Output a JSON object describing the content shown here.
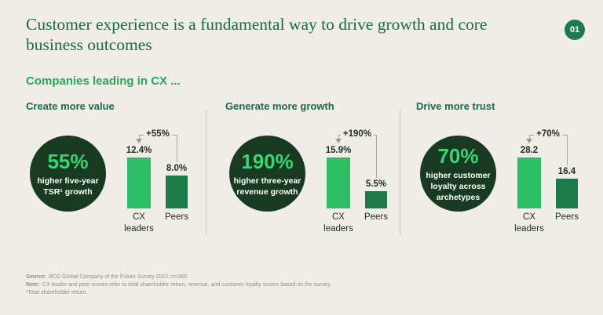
{
  "header": {
    "badge": "01",
    "title_line1": "Customer experience is a fundamental way to drive growth and core",
    "title_line2": "business outcomes",
    "subtitle": "Companies leading in CX ..."
  },
  "colors": {
    "background": "#f0ece7",
    "title_green": "#186a4b",
    "subtitle_green": "#29a65b",
    "badge_green": "#1e7a51",
    "circle_dark_green": "#173a21",
    "highlight_light_green": "#3cd473",
    "bar_cx_green": "#2dbe65",
    "bar_peers_green": "#1f7a49",
    "text_dark": "#1f2e22",
    "footnote_gray": "#908f89"
  },
  "chart_data": [
    {
      "type": "bar",
      "title": "Create more value",
      "highlight": {
        "value": "55%",
        "label": "higher five-year\nTSR¹ growth"
      },
      "categories": [
        "CX leaders",
        "Peers"
      ],
      "categories_display": [
        "CX\nleaders",
        "Peers"
      ],
      "values": [
        12.4,
        8.0
      ],
      "value_labels": [
        "12.4%",
        "8.0%"
      ],
      "annotation": "+55%",
      "legend_position": "none",
      "grid": false
    },
    {
      "type": "bar",
      "title": "Generate more growth",
      "highlight": {
        "value": "190%",
        "label": "higher three-year\nrevenue growth"
      },
      "categories": [
        "CX leaders",
        "Peers"
      ],
      "categories_display": [
        "CX\nleaders",
        "Peers"
      ],
      "values": [
        15.9,
        5.5
      ],
      "value_labels": [
        "15.9%",
        "5.5%"
      ],
      "annotation": "+190%",
      "legend_position": "none",
      "grid": false
    },
    {
      "type": "bar",
      "title": "Drive more trust",
      "highlight": {
        "value": "70%",
        "label": "higher customer\nloyalty across\narchetypes"
      },
      "categories": [
        "CX leaders",
        "Peers"
      ],
      "categories_display": [
        "CX\nleaders",
        "Peers"
      ],
      "values": [
        28.2,
        16.4
      ],
      "value_labels": [
        "28.2",
        "16.4"
      ],
      "annotation": "+70%",
      "legend_position": "none",
      "grid": false
    }
  ],
  "footer": {
    "source_label": "Source:",
    "source_text": "BCG Global Company of the Future Survey 2022; n=263.",
    "note_label": "Note:",
    "note_text": "CX leader and peer scores refer to total shareholder return, revenue, and customer loyalty scores based on the survey.",
    "footnote": "¹Total shareholder return."
  }
}
